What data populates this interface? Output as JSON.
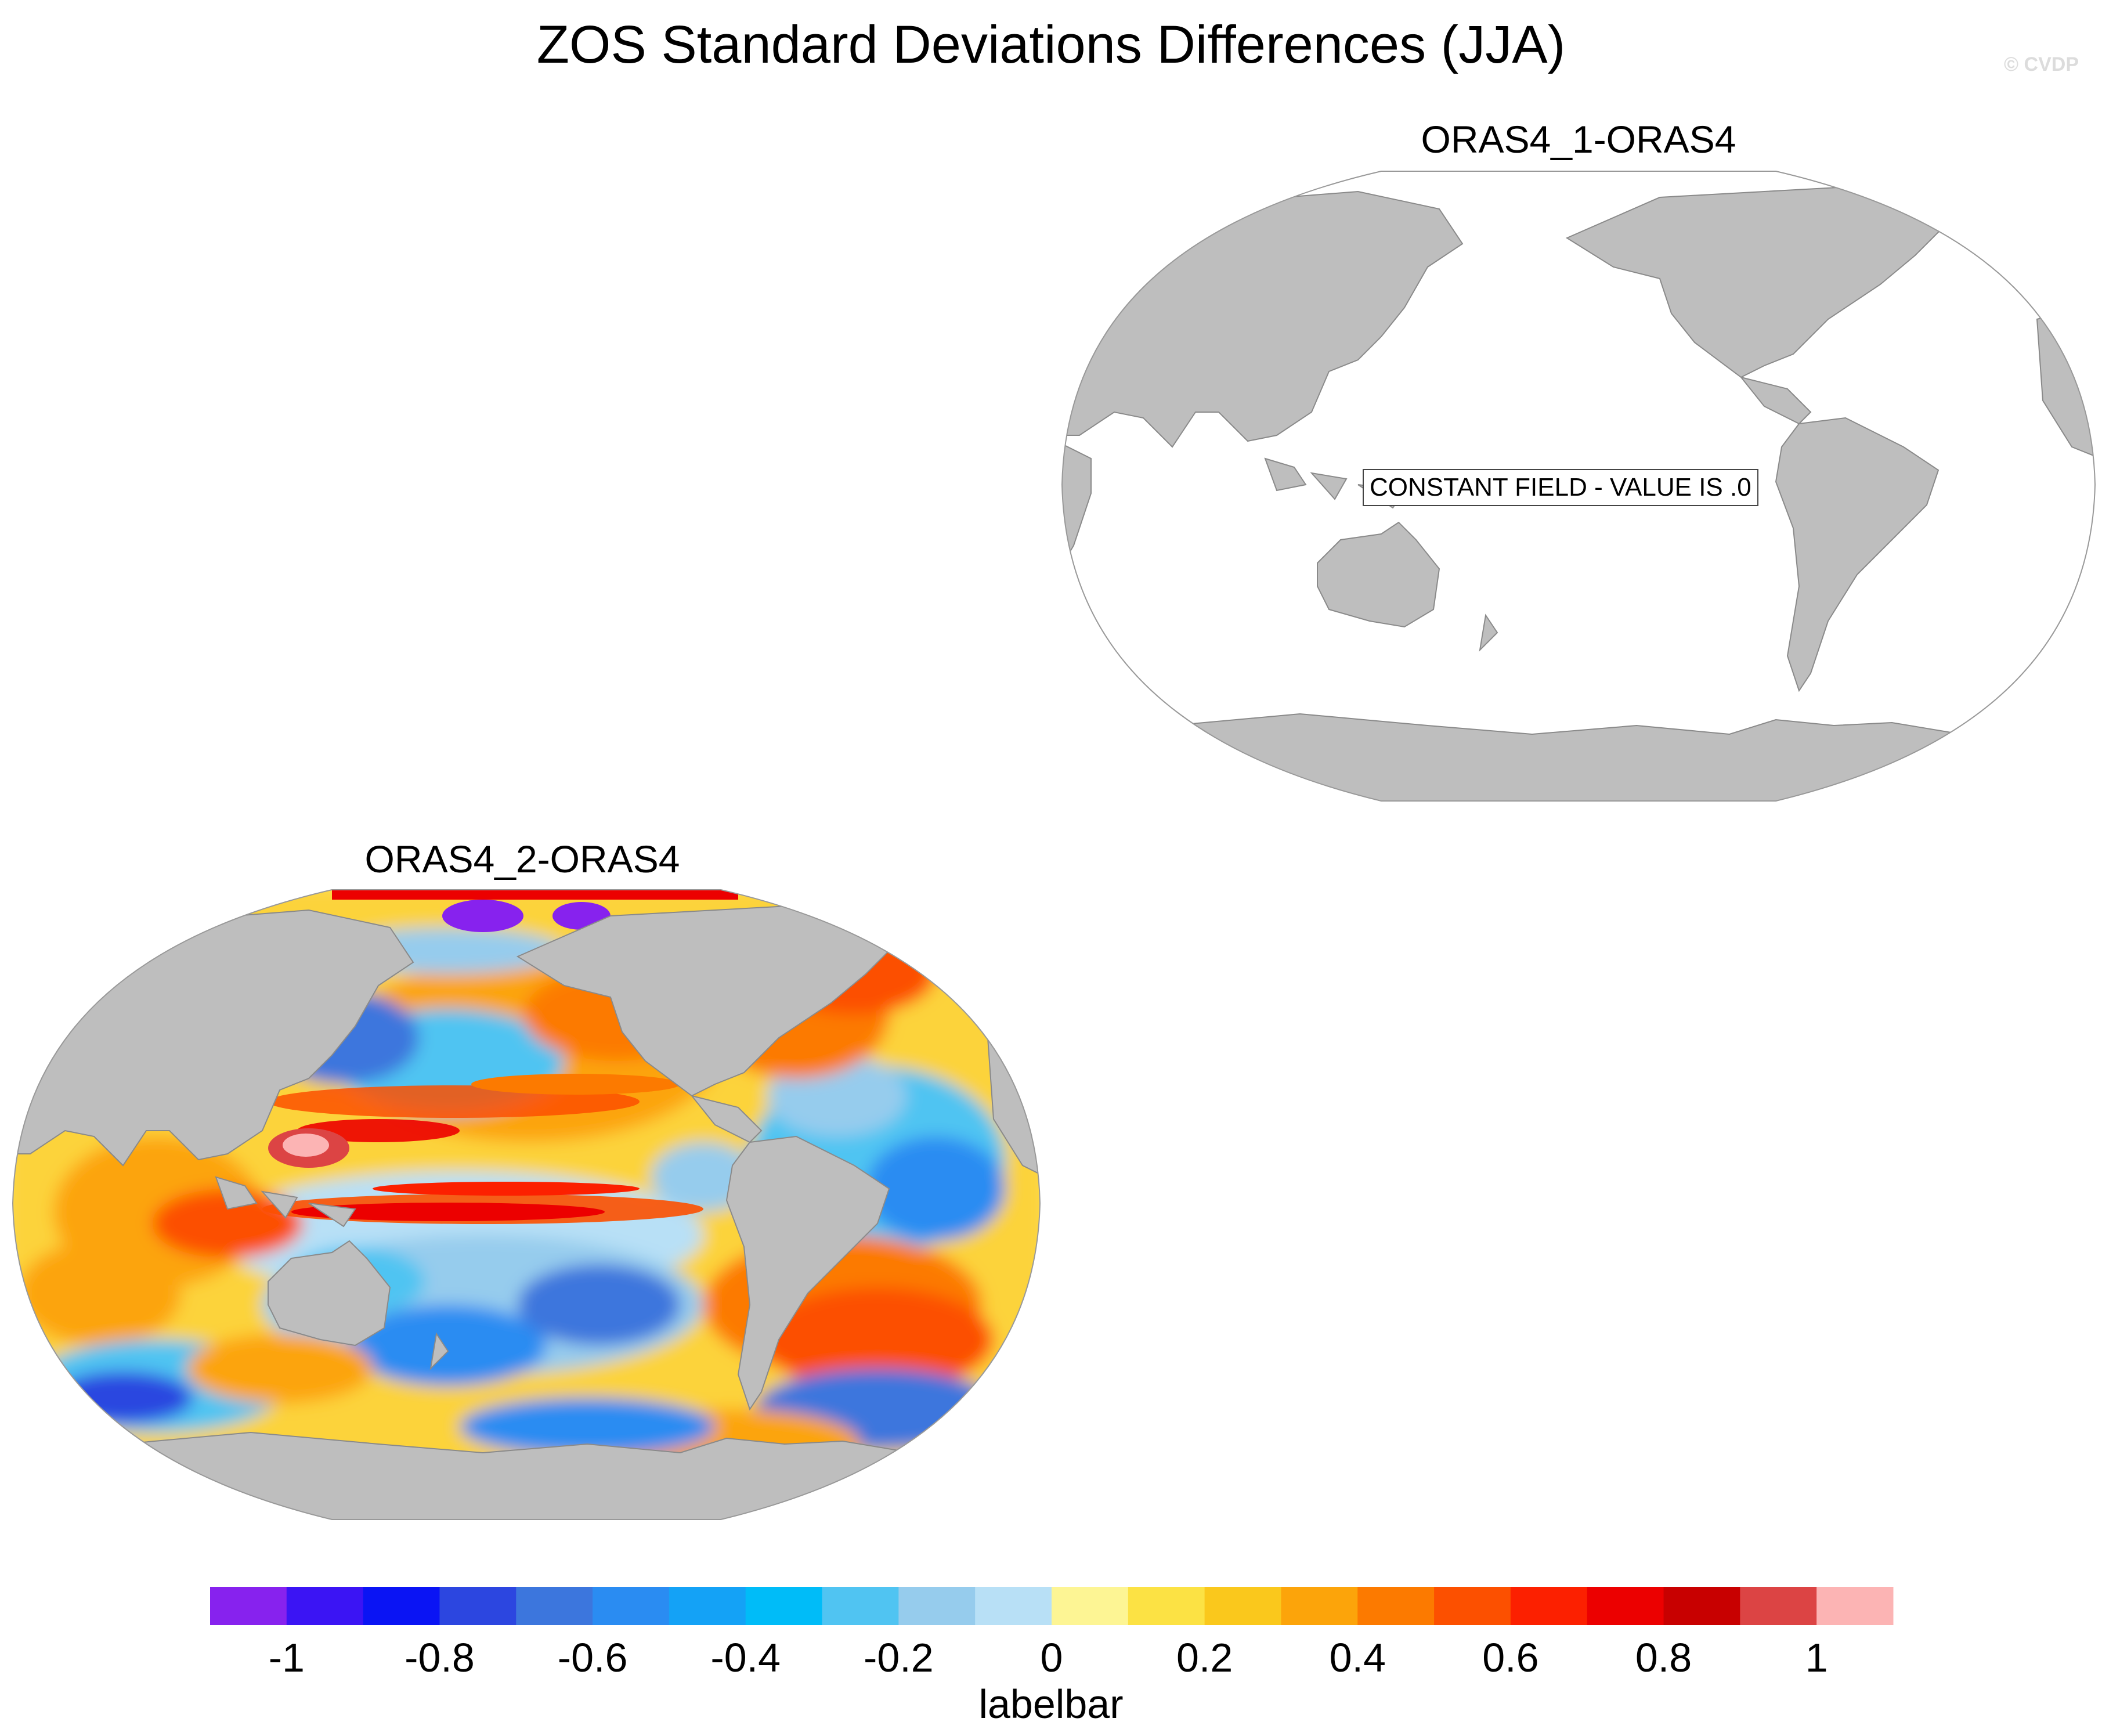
{
  "figure": {
    "title": "ZOS Standard Deviations Differences (JJA)",
    "credit": "© CVDP"
  },
  "panels": [
    {
      "title": "ORAS4_1-ORAS4",
      "annotation": "CONSTANT FIELD - VALUE IS .0"
    },
    {
      "title": "ORAS4_2-ORAS4"
    }
  ],
  "colors": {
    "land": "#bebebe",
    "ocean_constant": "#ffffff",
    "outline": "#999999"
  },
  "labelbar": {
    "title": "labelbar",
    "colors": [
      "#8722ee",
      "#3b14f4",
      "#0a14f4",
      "#2c46e0",
      "#3c76dd",
      "#2a8cf2",
      "#14a2f6",
      "#00bcf8",
      "#50c4f2",
      "#96cced",
      "#b8e0f6",
      "#fdf594",
      "#fce244",
      "#fac81c",
      "#fca40a",
      "#fc7a00",
      "#fc5000",
      "#fc2000",
      "#ec0000",
      "#c80000",
      "#dc4444",
      "#fcb4b4"
    ],
    "tick_labels": [
      "-1",
      "-0.8",
      "-0.6",
      "-0.4",
      "-0.2",
      "0",
      "0.2",
      "0.4",
      "0.6",
      "0.8",
      "1"
    ],
    "tick_values": [
      -1,
      -0.8,
      -0.6,
      -0.4,
      -0.2,
      0,
      0.2,
      0.4,
      0.6,
      0.8,
      1
    ],
    "range": [
      -1.1,
      1.1
    ]
  }
}
